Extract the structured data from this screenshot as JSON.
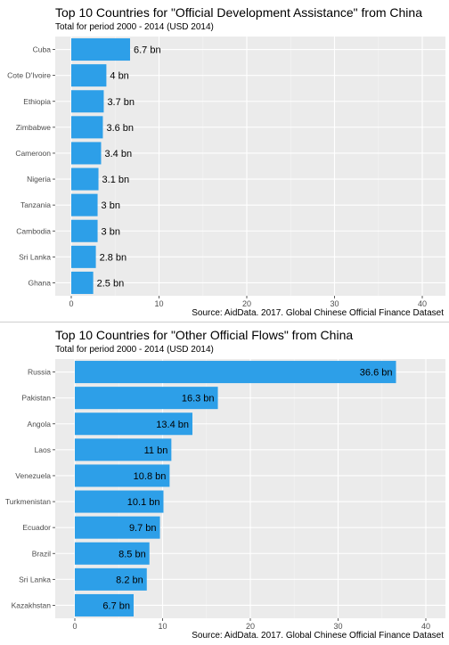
{
  "colors": {
    "panel_bg": "#ebebeb",
    "grid_major": "#ffffff",
    "bar": "#2d9fe8",
    "text": "#000000",
    "tick_text": "#4d4d4d"
  },
  "chart_data": [
    {
      "type": "bar",
      "orientation": "horizontal",
      "title": "Top 10 Countries for \"Official Development Assistance\" from China",
      "subtitle": "Total for period 2000 - 2014 (USD 2014)",
      "caption": "Source: AidData. 2017. Global Chinese Official Finance Dataset",
      "categories": [
        "Cuba",
        "Cote D'Ivoire",
        "Ethiopia",
        "Zimbabwe",
        "Cameroon",
        "Nigeria",
        "Tanzania",
        "Cambodia",
        "Sri Lanka",
        "Ghana"
      ],
      "values": [
        6.7,
        4.0,
        3.7,
        3.6,
        3.4,
        3.1,
        3.0,
        3.0,
        2.8,
        2.5
      ],
      "labels": [
        "6.7 bn",
        "4 bn",
        "3.7 bn",
        "3.6 bn",
        "3.4 bn",
        "3.1 bn",
        "3 bn",
        "3 bn",
        "2.8 bn",
        "2.5 bn"
      ],
      "label_position": "outside",
      "xlim": [
        0,
        41.5
      ],
      "xticks": [
        0,
        10,
        20,
        30,
        40
      ],
      "xtick_labels": [
        "0",
        "10",
        "20",
        "30",
        "40"
      ],
      "grid": true
    },
    {
      "type": "bar",
      "orientation": "horizontal",
      "title": "Top 10 Countries for \"Other Official Flows\" from China",
      "subtitle": "Total for period 2000 - 2014 (USD 2014)",
      "caption": "Source: AidData. 2017. Global Chinese Official Finance Dataset",
      "categories": [
        "Russia",
        "Pakistan",
        "Angola",
        "Laos",
        "Venezuela",
        "Turkmenistan",
        "Ecuador",
        "Brazil",
        "Sri Lanka",
        "Kazakhstan"
      ],
      "values": [
        36.6,
        16.3,
        13.4,
        11.0,
        10.8,
        10.1,
        9.7,
        8.5,
        8.2,
        6.7
      ],
      "labels": [
        "36.6 bn",
        "16.3 bn",
        "13.4 bn",
        "11 bn",
        "10.8 bn",
        "10.1 bn",
        "9.7 bn",
        "8.5 bn",
        "8.2 bn",
        "6.7 bn"
      ],
      "label_position": "inside",
      "xlim": [
        0,
        41.5
      ],
      "xticks": [
        0,
        10,
        20,
        30,
        40
      ],
      "xtick_labels": [
        "0",
        "10",
        "20",
        "30",
        "40"
      ],
      "grid": true
    }
  ]
}
